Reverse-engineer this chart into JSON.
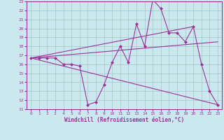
{
  "background_color": "#cce8ef",
  "grid_color": "#aacccc",
  "line_color": "#993399",
  "marker_color": "#993399",
  "xlabel": "Windchill (Refroidissement éolien,°C)",
  "xlim": [
    -0.5,
    23.5
  ],
  "ylim": [
    11,
    23
  ],
  "yticks": [
    11,
    12,
    13,
    14,
    15,
    16,
    17,
    18,
    19,
    20,
    21,
    22,
    23
  ],
  "xticks": [
    0,
    1,
    2,
    3,
    4,
    5,
    6,
    7,
    8,
    9,
    10,
    11,
    12,
    13,
    14,
    15,
    16,
    17,
    18,
    19,
    20,
    21,
    22,
    23
  ],
  "series_main": {
    "x": [
      0,
      1,
      2,
      3,
      4,
      5,
      6,
      7,
      8,
      9,
      10,
      11,
      12,
      13,
      14,
      15,
      16,
      17,
      18,
      19,
      20,
      21,
      22,
      23
    ],
    "y": [
      16.7,
      16.7,
      16.7,
      16.7,
      16.0,
      16.0,
      15.8,
      11.5,
      11.8,
      13.7,
      16.2,
      18.0,
      16.2,
      20.5,
      18.0,
      23.2,
      22.2,
      19.5,
      19.5,
      18.5,
      20.2,
      16.0,
      13.0,
      11.5
    ]
  },
  "line1": {
    "x": [
      0,
      20
    ],
    "y": [
      16.7,
      20.2
    ]
  },
  "line2": {
    "x": [
      0,
      23
    ],
    "y": [
      16.7,
      18.5
    ]
  },
  "line3": {
    "x": [
      0,
      23
    ],
    "y": [
      16.7,
      11.5
    ]
  }
}
